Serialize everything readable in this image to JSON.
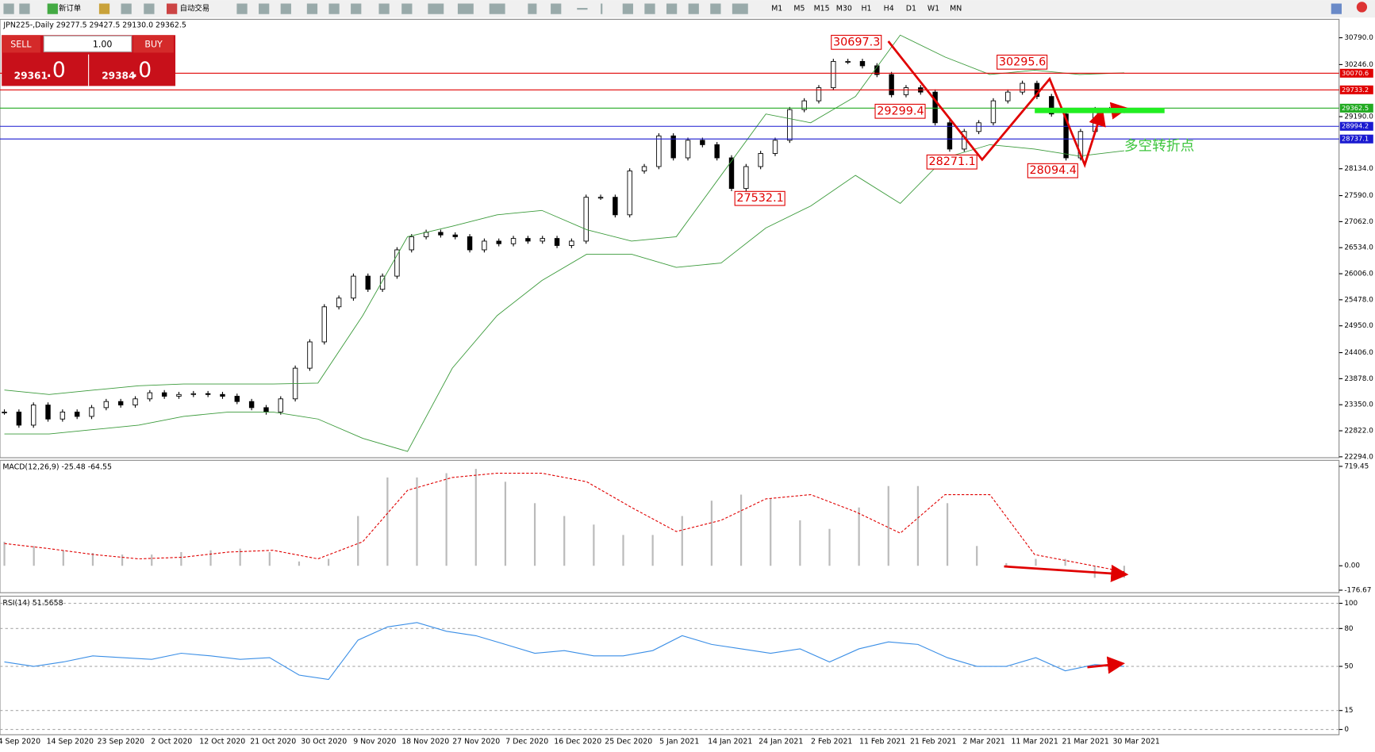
{
  "toolbar": {
    "buttons": [
      "新订单",
      "自动交易"
    ],
    "timeframes": [
      "M1",
      "M5",
      "M15",
      "M30",
      "H1",
      "H4",
      "D1",
      "W1",
      "MN"
    ]
  },
  "chart_header": "JPN225-,Daily  29277.5 29427.5 29130.0 29362.5",
  "trade_panel": {
    "sell": "SELL",
    "buy": "BUY",
    "lots": "1.00",
    "sell_price": "29361",
    "sell_frac": ".0",
    "buy_price": "29384",
    "buy_frac": ".0"
  },
  "chart_data": [
    {
      "type": "candlestick",
      "closes": [
        23202,
        22936,
        23344,
        23060,
        23202,
        23113,
        23291,
        23415,
        23344,
        23469,
        23593,
        23522,
        23558,
        23575,
        23558,
        23522,
        23415,
        23291,
        23202,
        23469,
        24091,
        24624,
        25335,
        25512,
        25957,
        25690,
        25957,
        26490,
        26756,
        26845,
        26792,
        26756,
        26490,
        26667,
        26614,
        26721,
        26667,
        26721,
        26578,
        26667,
        27556,
        27556,
        27200,
        28089,
        28178,
        28800,
        28355,
        28711,
        28622,
        28355,
        27734,
        28178,
        28444,
        28711,
        29333,
        29511,
        29777,
        30310,
        30310,
        30221,
        30044,
        29635,
        29777,
        29688,
        29066,
        28533,
        28889,
        29066,
        29511,
        29688,
        29866,
        29599,
        29244,
        28355,
        28889,
        29333,
        29333,
        29315
      ],
      "upper_band": [
        23647,
        23558,
        23647,
        23735,
        23771,
        23771,
        23771,
        23789,
        25157,
        26756,
        26969,
        27200,
        27289,
        26898,
        26667,
        26756,
        28000,
        29244,
        29066,
        29599,
        30843,
        30399,
        30044,
        30132,
        30044,
        30079
      ],
      "lower_band": [
        22758,
        22758,
        22847,
        22936,
        23113,
        23202,
        23202,
        23060,
        22669,
        22403,
        24091,
        25157,
        25868,
        26401,
        26401,
        26134,
        26223,
        26934,
        27378,
        28000,
        27431,
        28355,
        28622,
        28533,
        28391,
        28498
      ],
      "ylim": [
        22276,
        31163
      ],
      "yticks": [
        {
          "value": 30790,
          "label": "30790.0"
        },
        {
          "value": 30246,
          "label": "30246.0"
        },
        {
          "value": 29190,
          "label": "29190.0"
        },
        {
          "value": 28134,
          "label": "28134.0"
        },
        {
          "value": 27590,
          "label": "27590.0"
        },
        {
          "value": 27062,
          "label": "27062.0"
        },
        {
          "value": 26534,
          "label": "26534.0"
        },
        {
          "value": 26006,
          "label": "26006.0"
        },
        {
          "value": 25478,
          "label": "25478.0"
        },
        {
          "value": 24950,
          "label": "24950.0"
        },
        {
          "value": 24406,
          "label": "24406.0"
        },
        {
          "value": 23878,
          "label": "23878.0"
        },
        {
          "value": 23350,
          "label": "23350.0"
        },
        {
          "value": 22822,
          "label": "22822.0"
        },
        {
          "value": 22294,
          "label": "22294.0"
        }
      ],
      "price_lines": [
        {
          "value": 30070.6,
          "color": "#e00000"
        },
        {
          "value": 29733.2,
          "color": "#e00000"
        },
        {
          "value": 29362.5,
          "color": "#22aa22"
        },
        {
          "value": 28994.2,
          "color": "#1a1ad0"
        },
        {
          "value": 28737.1,
          "color": "#1a1ad0"
        }
      ],
      "annotations": [
        30697.3,
        30295.6,
        29299.4,
        28271.1,
        27532.1,
        28094.4
      ],
      "note": "多空转折点",
      "x_labels": [
        "4 Sep 2020",
        "14 Sep 2020",
        "23 Sep 2020",
        "2 Oct 2020",
        "12 Oct 2020",
        "21 Oct 2020",
        "30 Oct 2020",
        "9 Nov 2020",
        "18 Nov 2020",
        "27 Nov 2020",
        "7 Dec 2020",
        "16 Dec 2020",
        "25 Dec 2020",
        "5 Jan 2021",
        "14 Jan 2021",
        "24 Jan 2021",
        "2 Feb 2021",
        "11 Feb 2021",
        "21 Feb 2021",
        "2 Mar 2021",
        "11 Mar 2021",
        "21 Mar 2021",
        "30 Mar 2021"
      ]
    },
    {
      "type": "macd",
      "title": "MACD(12,26,9) -25.48 -64.55",
      "histogram": [
        174,
        143,
        112,
        93,
        81,
        81,
        99,
        112,
        124,
        99,
        31,
        50,
        360,
        639,
        639,
        670,
        701,
        608,
        453,
        360,
        298,
        223,
        223,
        360,
        471,
        515,
        484,
        329,
        267,
        422,
        577,
        577,
        453,
        143,
        19,
        50,
        50,
        -87,
        -87
      ],
      "signal": [
        161,
        124,
        81,
        50,
        62,
        99,
        112,
        50,
        174,
        546,
        639,
        670,
        670,
        608,
        422,
        248,
        329,
        484,
        515,
        391,
        236,
        515,
        515,
        81,
        19,
        -43
      ],
      "ylim": [
        -195,
        763
      ],
      "yticks": [
        719.45,
        {
          "value": 0,
          "label": "0.00"
        },
        -176.67
      ]
    },
    {
      "type": "line",
      "title": "RSI(14) 51.5658",
      "values": [
        53.5,
        50,
        53.5,
        58.3,
        56.9,
        55.6,
        60.4,
        58.3,
        55.6,
        56.9,
        43.1,
        39.6,
        70.8,
        81.3,
        84.7,
        77.8,
        74.3,
        67.4,
        60.4,
        62.5,
        58.3,
        58.3,
        62.5,
        74.3,
        67.4,
        63.9,
        60.4,
        63.9,
        53.5,
        63.9,
        69.4,
        67.4,
        56.9,
        50,
        50,
        56.9,
        46.5,
        51.4,
        50
      ],
      "ylim": [
        -4.2,
        105.6
      ],
      "yticks": [
        100,
        80,
        50,
        15,
        0
      ]
    }
  ]
}
